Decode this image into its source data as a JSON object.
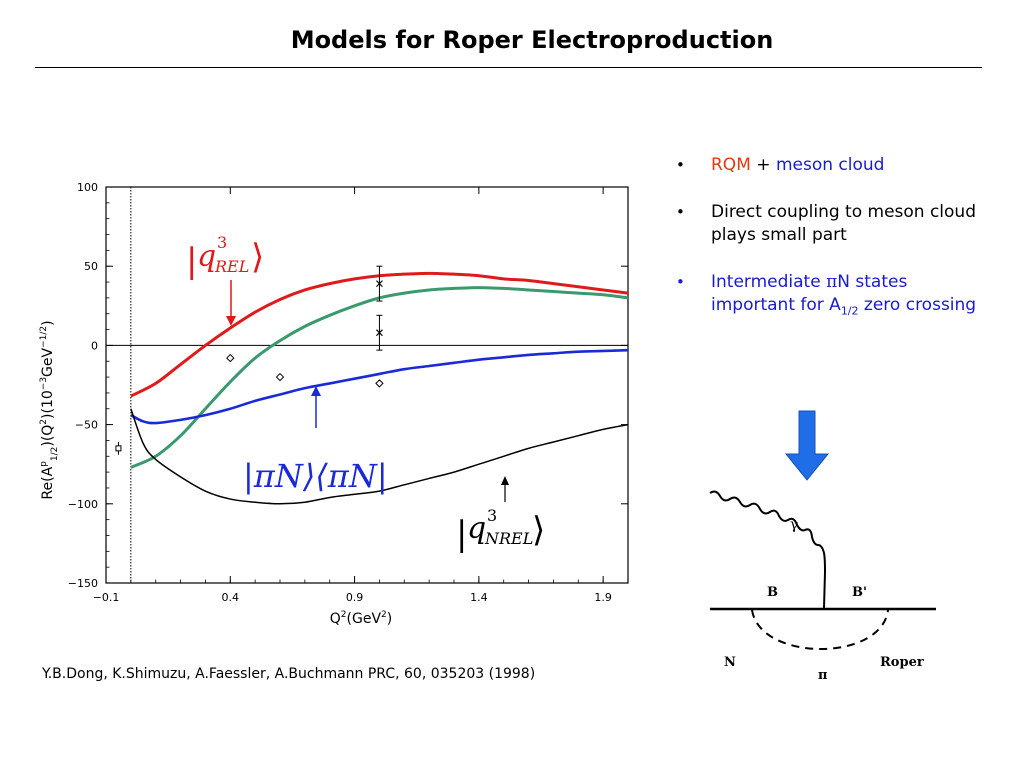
{
  "slide": {
    "title": "Models for Roper Electroproduction",
    "citation": "Y.B.Dong, K.Shimuzu, A.Faessler, A.Buchmann PRC, 60, 035203 (1998)"
  },
  "bullets": {
    "item1": {
      "rqm": "RQM",
      "plus": "+",
      "meson": "meson cloud"
    },
    "item2": "Direct coupling to meson cloud plays small part",
    "item3": {
      "pre": "Intermediate ",
      "pi": "π",
      "post1": "N states important for A",
      "sub": "1/2",
      "post2": " zero crossing"
    }
  },
  "colors": {
    "red": "#e01a1a",
    "green": "#3a9a6e",
    "blue": "#1a2ad8",
    "black": "#000000",
    "bullet_blue": "#1a1ad0",
    "bullet_red": "#e03a10",
    "arrow_blue": "#1f6ee8"
  },
  "diagram": {
    "gamma": "γ",
    "b": "B",
    "b_prime": "B'",
    "n": "N",
    "pi": "π",
    "roper": "Roper",
    "arrow_icon": "down-arrow-icon"
  },
  "chart_data": {
    "type": "line",
    "xlabel": {
      "main": "Q",
      "sup": "2",
      "unit_open": "(GeV",
      "unit_sup": "2",
      "unit_close": ")"
    },
    "ylabel": {
      "a": "Re(A",
      "p": "p",
      "sub": "1/2",
      "b": ")(Q",
      "sup2": "2",
      "c": ")(10",
      "exp": "−3",
      "d": "GeV",
      "exp2": "−1/2",
      "e": ")"
    },
    "xlim": [
      -0.1,
      2.0
    ],
    "ylim": [
      -150,
      100
    ],
    "xticks": [
      -0.1,
      0.4,
      0.9,
      1.4,
      1.9
    ],
    "xtick_labels": [
      "−0.1",
      "0.4",
      "0.9",
      "1.4",
      "1.9"
    ],
    "yticks": [
      100,
      50,
      0,
      -50,
      -100,
      -150
    ],
    "ytick_labels": [
      "100",
      "50",
      "0",
      "−50",
      "−100",
      "−150"
    ],
    "reference_lines": {
      "y": 0,
      "x": 0.0
    },
    "series": [
      {
        "key": "rel",
        "color": "#e01a1a",
        "x": [
          0.0,
          0.1,
          0.2,
          0.3,
          0.4,
          0.5,
          0.6,
          0.7,
          0.8,
          0.9,
          1.0,
          1.1,
          1.2,
          1.3,
          1.4,
          1.5,
          1.6,
          1.7,
          1.8,
          1.9,
          2.0
        ],
        "y": [
          -32,
          -24,
          -12,
          0,
          11,
          21,
          29,
          35,
          39,
          42,
          44,
          45,
          45.5,
          45,
          44,
          42,
          41,
          39,
          37,
          35,
          33
        ]
      },
      {
        "key": "green",
        "color": "#3a9a6e",
        "x": [
          0.0,
          0.1,
          0.2,
          0.3,
          0.4,
          0.5,
          0.6,
          0.7,
          0.8,
          0.9,
          1.0,
          1.1,
          1.2,
          1.3,
          1.4,
          1.5,
          1.6,
          1.7,
          1.8,
          1.9,
          2.0
        ],
        "y": [
          -77,
          -70,
          -57,
          -40,
          -23,
          -8,
          3,
          12,
          19,
          25,
          30,
          33,
          35,
          36,
          36.5,
          36,
          35,
          34,
          33,
          32,
          30
        ]
      },
      {
        "key": "piN",
        "color": "#1a2ad8",
        "x": [
          0.0,
          0.05,
          0.1,
          0.2,
          0.3,
          0.4,
          0.5,
          0.6,
          0.7,
          0.8,
          0.9,
          1.0,
          1.1,
          1.2,
          1.3,
          1.4,
          1.5,
          1.6,
          1.7,
          1.8,
          1.9,
          2.0
        ],
        "y": [
          -44,
          -48,
          -49,
          -47,
          -44,
          -40,
          -35,
          -31,
          -27,
          -24,
          -21,
          -18,
          -15,
          -13,
          -11,
          -9,
          -7.5,
          -6,
          -5,
          -4,
          -3.5,
          -3
        ]
      },
      {
        "key": "nrel",
        "color": "#000000",
        "x": [
          0.0,
          0.05,
          0.1,
          0.2,
          0.3,
          0.4,
          0.5,
          0.6,
          0.7,
          0.8,
          0.9,
          1.0,
          1.1,
          1.2,
          1.3,
          1.4,
          1.5,
          1.6,
          1.7,
          1.8,
          1.9,
          2.0
        ],
        "y": [
          -40,
          -62,
          -72,
          -83,
          -92,
          -97,
          -99,
          -100,
          -99,
          -96,
          -94,
          -92,
          -88,
          -84,
          -80,
          -75,
          -70,
          -65,
          -61,
          -57,
          -53,
          -50
        ]
      }
    ],
    "data_points": {
      "diamonds": [
        {
          "x": 0.4,
          "y": -8
        },
        {
          "x": 0.6,
          "y": -20
        },
        {
          "x": 1.0,
          "y": -24
        }
      ],
      "crosses": [
        {
          "x": 1.0,
          "y": 39,
          "err": 11
        },
        {
          "x": 1.0,
          "y": 8,
          "err": 11
        }
      ],
      "square": {
        "x": -0.05,
        "y": -65,
        "err": 4
      }
    },
    "annotations": {
      "rel": {
        "bar": "|",
        "q": "q",
        "sup": "3",
        "sub": "REL",
        "angle": "⟩",
        "color": "#e01a1a"
      },
      "piN": {
        "text": "|πN⟩⟨πN|",
        "color": "#1a2ad8"
      },
      "nrel": {
        "bar": "|",
        "q": "q",
        "sup": "3",
        "sub": "NREL",
        "angle": "⟩",
        "color": "#000000"
      }
    }
  }
}
